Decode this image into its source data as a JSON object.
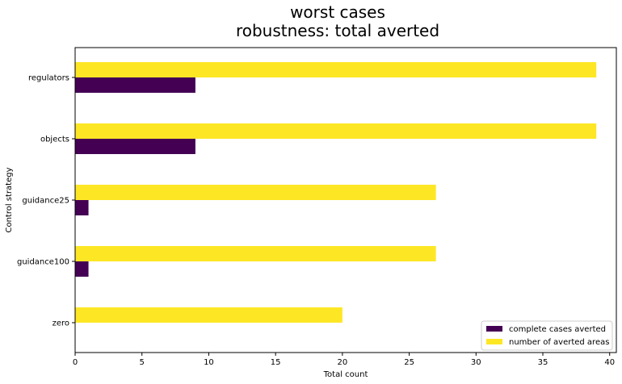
{
  "chart_data": {
    "type": "bar",
    "orientation": "horizontal",
    "title": "worst cases",
    "subtitle": "robustness: total averted",
    "xlabel": "Total count",
    "ylabel": "Control strategy",
    "categories": [
      "zero",
      "guidance100",
      "guidance25",
      "objects",
      "regulators"
    ],
    "series": [
      {
        "name": "complete cases averted",
        "color": "#440154",
        "values": [
          0,
          1,
          1,
          9,
          9
        ]
      },
      {
        "name": "number of averted areas",
        "color": "#fde725",
        "values": [
          20,
          27,
          27,
          39,
          39
        ]
      }
    ],
    "xlim": [
      0,
      40.5
    ],
    "xticks": [
      0,
      5,
      10,
      15,
      20,
      25,
      30,
      35,
      40
    ],
    "xtick_labels": [
      "0",
      "5",
      "10",
      "15",
      "20",
      "25",
      "30",
      "35",
      "40"
    ],
    "grid": false,
    "legend_position": "lower-right"
  }
}
